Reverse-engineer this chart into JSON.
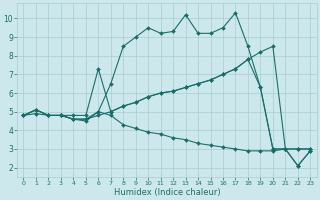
{
  "xlabel": "Humidex (Indice chaleur)",
  "xlim": [
    -0.5,
    23.5
  ],
  "ylim": [
    1.5,
    10.8
  ],
  "yticks": [
    2,
    3,
    4,
    5,
    6,
    7,
    8,
    9,
    10
  ],
  "xticks": [
    0,
    1,
    2,
    3,
    4,
    5,
    6,
    7,
    8,
    9,
    10,
    11,
    12,
    13,
    14,
    15,
    16,
    17,
    18,
    19,
    20,
    21,
    22,
    23
  ],
  "bg_color": "#cde8ec",
  "line_color": "#1a6e6a",
  "grid_color": "#a8cdd0",
  "series": [
    {
      "x": [
        0,
        1,
        2,
        3,
        4,
        5,
        6,
        7,
        8,
        9,
        10,
        11,
        12,
        13,
        14,
        15,
        16,
        17,
        18,
        19,
        20,
        21,
        22,
        23
      ],
      "y": [
        4.8,
        5.1,
        4.8,
        4.8,
        4.6,
        4.5,
        5.0,
        6.5,
        8.5,
        9.0,
        9.5,
        9.2,
        9.3,
        10.2,
        9.2,
        9.2,
        9.5,
        10.3,
        8.5,
        6.3,
        3.0,
        3.0,
        2.1,
        2.9
      ]
    },
    {
      "x": [
        0,
        1,
        2,
        3,
        4,
        5,
        6,
        7,
        8,
        9,
        10,
        11,
        12,
        13,
        14,
        15,
        16,
        17,
        18,
        19,
        20,
        21,
        22,
        23
      ],
      "y": [
        4.8,
        5.1,
        4.8,
        4.8,
        4.6,
        4.6,
        4.8,
        5.0,
        5.3,
        5.5,
        5.8,
        6.0,
        6.1,
        6.3,
        6.5,
        6.7,
        7.0,
        7.3,
        7.8,
        8.2,
        8.5,
        3.0,
        3.0,
        3.0
      ]
    },
    {
      "x": [
        0,
        1,
        2,
        3,
        4,
        5,
        6,
        7,
        8,
        9,
        10,
        11,
        12,
        13,
        14,
        15,
        16,
        17,
        18,
        19,
        20,
        21,
        22,
        23
      ],
      "y": [
        4.8,
        4.9,
        4.8,
        4.8,
        4.6,
        4.6,
        5.0,
        4.8,
        4.3,
        4.1,
        3.9,
        3.8,
        3.6,
        3.5,
        3.3,
        3.2,
        3.1,
        3.0,
        2.9,
        2.9,
        2.9,
        3.0,
        3.0,
        3.0
      ]
    },
    {
      "x": [
        0,
        1,
        2,
        3,
        4,
        5,
        6,
        7,
        8,
        9,
        10,
        11,
        12,
        13,
        14,
        15,
        16,
        17,
        18,
        19,
        20,
        21,
        22,
        23
      ],
      "y": [
        4.8,
        5.1,
        4.8,
        4.8,
        4.8,
        4.8,
        7.3,
        5.0,
        5.3,
        5.5,
        5.8,
        6.0,
        6.1,
        6.3,
        6.5,
        6.7,
        7.0,
        7.3,
        7.8,
        6.3,
        3.0,
        3.0,
        2.1,
        2.9
      ]
    }
  ]
}
